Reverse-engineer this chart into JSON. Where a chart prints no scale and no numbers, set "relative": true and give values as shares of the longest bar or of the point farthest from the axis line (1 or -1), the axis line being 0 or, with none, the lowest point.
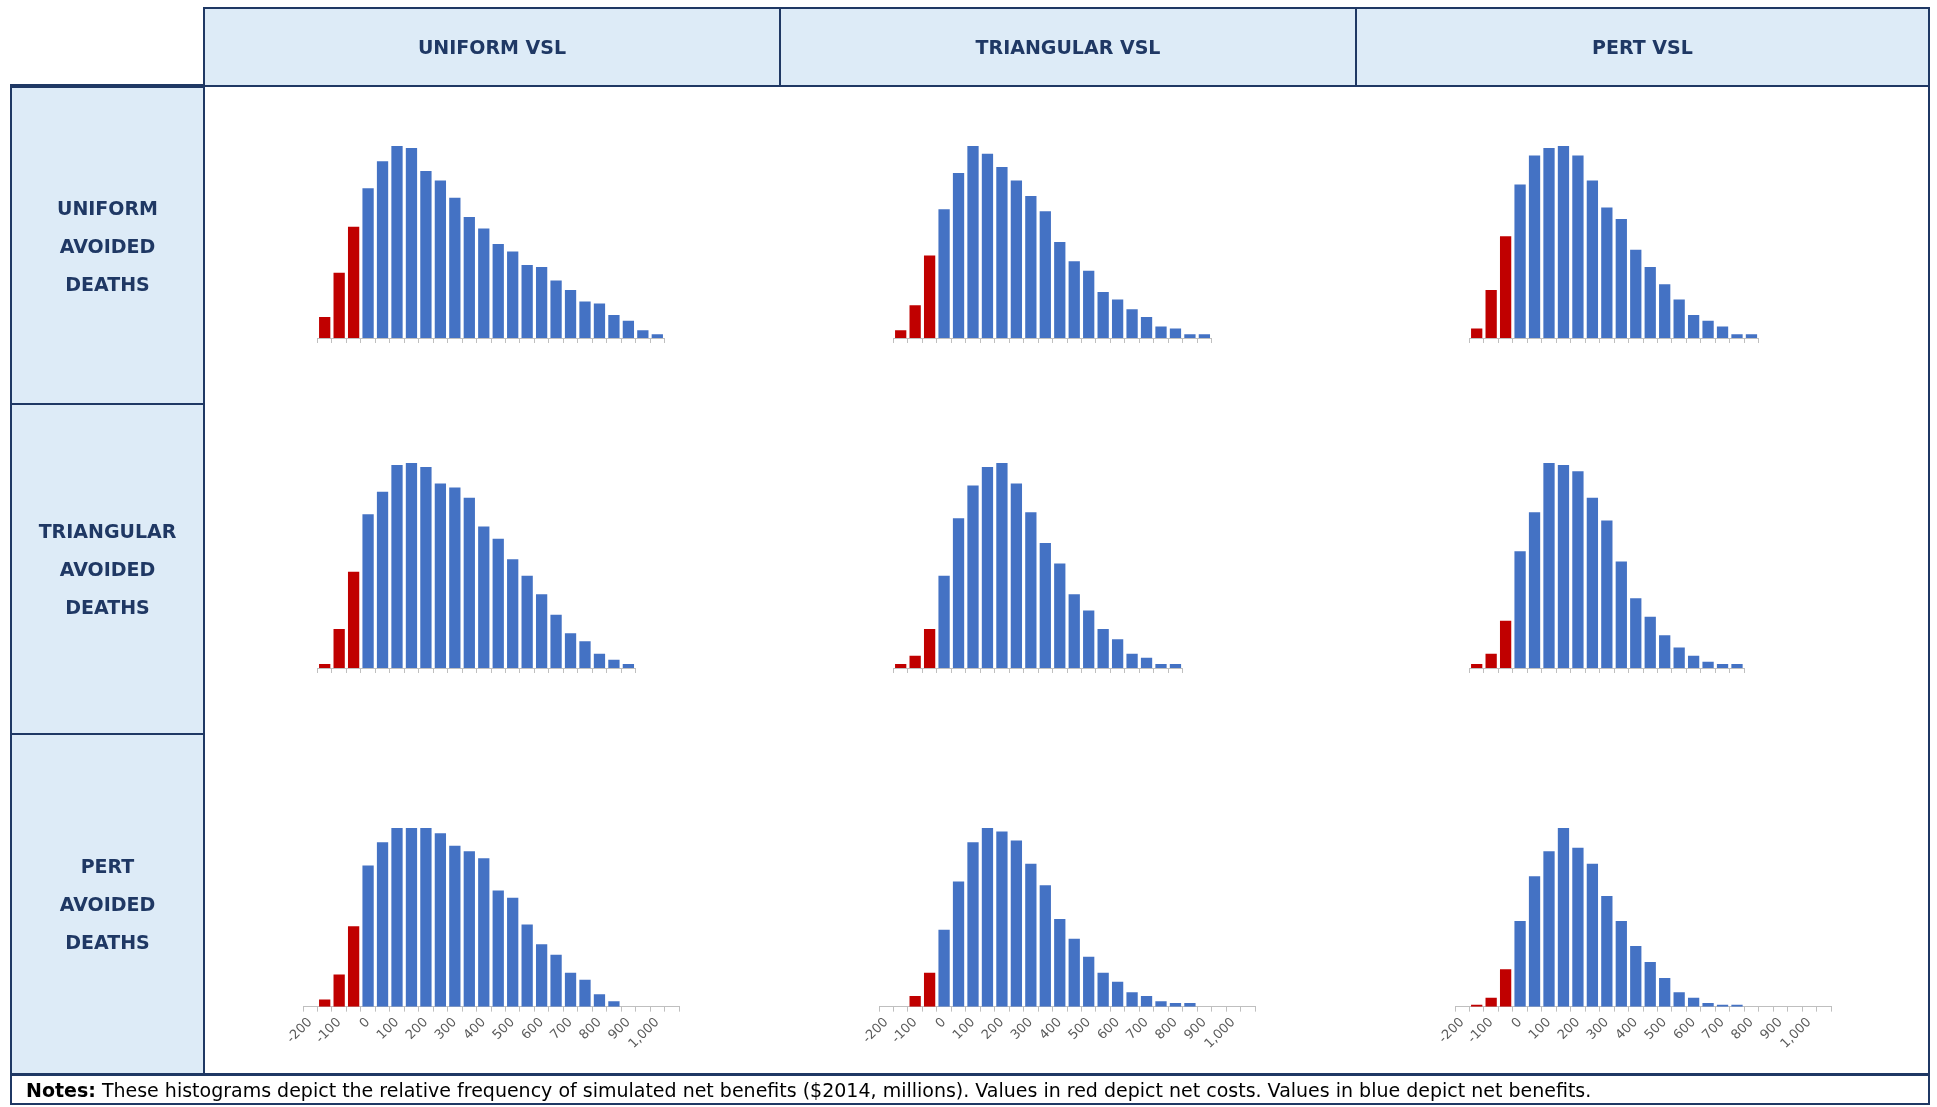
{
  "chart_data": [
    {
      "type": "bar",
      "title": "UNIFORM VSL",
      "ylabel": "UNIFORM AVOIDED DEATHS",
      "relative": true,
      "tick_labels": false,
      "annotations": [
        "Notes: These histograms depict the relative frequency of simulated net benefits ($2014, millions). Values in red depict net costs. Values in blue depict net benefits."
      ],
      "categories": [
        null,
        null,
        null,
        null,
        null,
        null,
        null,
        null,
        null,
        null,
        null,
        null,
        null,
        null,
        null,
        null,
        null,
        null,
        null,
        null,
        null,
        null,
        null,
        null
      ],
      "values": [
        0.11,
        0.34,
        0.58,
        0.78,
        0.92,
        1,
        0.99,
        0.87,
        0.82,
        0.73,
        0.63,
        0.57,
        0.49,
        0.45,
        0.38,
        0.37,
        0.3,
        0.25,
        0.19,
        0.18,
        0.12,
        0.09,
        0.04,
        0.02
      ],
      "colors": [
        "#c00000",
        "#c00000",
        "#c00000",
        "#4472c4",
        "#4472c4",
        "#4472c4",
        "#4472c4",
        "#4472c4",
        "#4472c4",
        "#4472c4",
        "#4472c4",
        "#4472c4",
        "#4472c4",
        "#4472c4",
        "#4472c4",
        "#4472c4",
        "#4472c4",
        "#4472c4",
        "#4472c4",
        "#4472c4",
        "#4472c4",
        "#4472c4",
        "#4472c4",
        "#4472c4"
      ]
    },
    {
      "type": "bar",
      "title": "TRIANGULAR VSL",
      "relative": true,
      "tick_labels": false,
      "categories": [
        null,
        null,
        null,
        null,
        null,
        null,
        null,
        null,
        null,
        null,
        null,
        null,
        null,
        null,
        null,
        null,
        null,
        null,
        null,
        null,
        null,
        null
      ],
      "values": [
        0.04,
        0.17,
        0.43,
        0.67,
        0.86,
        1,
        0.96,
        0.89,
        0.82,
        0.74,
        0.66,
        0.5,
        0.4,
        0.35,
        0.24,
        0.2,
        0.15,
        0.11,
        0.06,
        0.05,
        0.02,
        0.02
      ],
      "colors": [
        "#c00000",
        "#c00000",
        "#c00000",
        "#4472c4",
        "#4472c4",
        "#4472c4",
        "#4472c4",
        "#4472c4",
        "#4472c4",
        "#4472c4",
        "#4472c4",
        "#4472c4",
        "#4472c4",
        "#4472c4",
        "#4472c4",
        "#4472c4",
        "#4472c4",
        "#4472c4",
        "#4472c4",
        "#4472c4",
        "#4472c4",
        "#4472c4"
      ]
    },
    {
      "type": "bar",
      "title": "PERT VSL",
      "relative": true,
      "tick_labels": false,
      "categories": [
        null,
        null,
        null,
        null,
        null,
        null,
        null,
        null,
        null,
        null,
        null,
        null,
        null,
        null,
        null,
        null,
        null,
        null,
        null,
        null
      ],
      "values": [
        0.05,
        0.25,
        0.53,
        0.8,
        0.95,
        0.99,
        1,
        0.95,
        0.82,
        0.68,
        0.62,
        0.46,
        0.37,
        0.28,
        0.2,
        0.12,
        0.09,
        0.06,
        0.02,
        0.02
      ],
      "colors": [
        "#c00000",
        "#c00000",
        "#c00000",
        "#4472c4",
        "#4472c4",
        "#4472c4",
        "#4472c4",
        "#4472c4",
        "#4472c4",
        "#4472c4",
        "#4472c4",
        "#4472c4",
        "#4472c4",
        "#4472c4",
        "#4472c4",
        "#4472c4",
        "#4472c4",
        "#4472c4",
        "#4472c4",
        "#4472c4"
      ]
    },
    {
      "type": "bar",
      "ylabel": "TRIANGULAR AVOIDED DEATHS",
      "relative": true,
      "tick_labels": false,
      "categories": [
        null,
        null,
        null,
        null,
        null,
        null,
        null,
        null,
        null,
        null,
        null,
        null,
        null,
        null,
        null,
        null,
        null,
        null,
        null,
        null,
        null,
        null
      ],
      "values": [
        0.02,
        0.19,
        0.47,
        0.75,
        0.86,
        0.99,
        1,
        0.98,
        0.9,
        0.88,
        0.83,
        0.69,
        0.63,
        0.53,
        0.45,
        0.36,
        0.26,
        0.17,
        0.13,
        0.07,
        0.04,
        0.02
      ],
      "colors": [
        "#c00000",
        "#c00000",
        "#c00000",
        "#4472c4",
        "#4472c4",
        "#4472c4",
        "#4472c4",
        "#4472c4",
        "#4472c4",
        "#4472c4",
        "#4472c4",
        "#4472c4",
        "#4472c4",
        "#4472c4",
        "#4472c4",
        "#4472c4",
        "#4472c4",
        "#4472c4",
        "#4472c4",
        "#4472c4",
        "#4472c4",
        "#4472c4"
      ]
    },
    {
      "type": "bar",
      "relative": true,
      "tick_labels": false,
      "categories": [
        null,
        null,
        null,
        null,
        null,
        null,
        null,
        null,
        null,
        null,
        null,
        null,
        null,
        null,
        null,
        null,
        null,
        null,
        null,
        null
      ],
      "values": [
        0.02,
        0.06,
        0.19,
        0.45,
        0.73,
        0.89,
        0.98,
        1,
        0.9,
        0.76,
        0.61,
        0.51,
        0.36,
        0.28,
        0.19,
        0.14,
        0.07,
        0.05,
        0.02,
        0.02
      ],
      "colors": [
        "#c00000",
        "#c00000",
        "#c00000",
        "#4472c4",
        "#4472c4",
        "#4472c4",
        "#4472c4",
        "#4472c4",
        "#4472c4",
        "#4472c4",
        "#4472c4",
        "#4472c4",
        "#4472c4",
        "#4472c4",
        "#4472c4",
        "#4472c4",
        "#4472c4",
        "#4472c4",
        "#4472c4",
        "#4472c4"
      ]
    },
    {
      "type": "bar",
      "relative": true,
      "tick_labels": false,
      "categories": [
        null,
        null,
        null,
        null,
        null,
        null,
        null,
        null,
        null,
        null,
        null,
        null,
        null,
        null,
        null,
        null,
        null,
        null,
        null
      ],
      "values": [
        0.02,
        0.07,
        0.23,
        0.57,
        0.76,
        1,
        0.99,
        0.96,
        0.83,
        0.72,
        0.52,
        0.34,
        0.25,
        0.16,
        0.1,
        0.06,
        0.03,
        0.02,
        0.02
      ],
      "colors": [
        "#c00000",
        "#c00000",
        "#c00000",
        "#4472c4",
        "#4472c4",
        "#4472c4",
        "#4472c4",
        "#4472c4",
        "#4472c4",
        "#4472c4",
        "#4472c4",
        "#4472c4",
        "#4472c4",
        "#4472c4",
        "#4472c4",
        "#4472c4",
        "#4472c4",
        "#4472c4",
        "#4472c4"
      ]
    },
    {
      "type": "bar",
      "ylabel": "PERT AVOIDED DEATHS",
      "relative": true,
      "categories": [
        "-200",
        null,
        "-100",
        null,
        "0",
        null,
        "100",
        null,
        "200",
        null,
        "300",
        null,
        "400",
        null,
        "500",
        null,
        "600",
        null,
        "700",
        null,
        "800",
        null,
        "900",
        null,
        "1,000",
        null
      ],
      "values": [
        0,
        0.04,
        0.18,
        0.45,
        0.79,
        0.92,
        1,
        1,
        1,
        0.97,
        0.9,
        0.87,
        0.83,
        0.65,
        0.61,
        0.46,
        0.35,
        0.29,
        0.19,
        0.15,
        0.07,
        0.03,
        0,
        0,
        0,
        0
      ],
      "colors": [
        "#c00000",
        "#c00000",
        "#c00000",
        "#c00000",
        "#4472c4",
        "#4472c4",
        "#4472c4",
        "#4472c4",
        "#4472c4",
        "#4472c4",
        "#4472c4",
        "#4472c4",
        "#4472c4",
        "#4472c4",
        "#4472c4",
        "#4472c4",
        "#4472c4",
        "#4472c4",
        "#4472c4",
        "#4472c4",
        "#4472c4",
        "#4472c4",
        "#4472c4",
        "#4472c4",
        "#4472c4",
        "#4472c4"
      ]
    },
    {
      "type": "bar",
      "relative": true,
      "categories": [
        "-200",
        null,
        "-100",
        null,
        "0",
        null,
        "100",
        null,
        "200",
        null,
        "300",
        null,
        "400",
        null,
        "500",
        null,
        "600",
        null,
        "700",
        null,
        "800",
        null,
        "900",
        null,
        "1,000",
        null
      ],
      "values": [
        0,
        0,
        0.06,
        0.19,
        0.43,
        0.7,
        0.92,
        1,
        0.98,
        0.93,
        0.8,
        0.68,
        0.49,
        0.38,
        0.28,
        0.19,
        0.14,
        0.08,
        0.06,
        0.03,
        0.02,
        0.02,
        0,
        0,
        0,
        0
      ],
      "colors": [
        "#c00000",
        "#c00000",
        "#c00000",
        "#c00000",
        "#4472c4",
        "#4472c4",
        "#4472c4",
        "#4472c4",
        "#4472c4",
        "#4472c4",
        "#4472c4",
        "#4472c4",
        "#4472c4",
        "#4472c4",
        "#4472c4",
        "#4472c4",
        "#4472c4",
        "#4472c4",
        "#4472c4",
        "#4472c4",
        "#4472c4",
        "#4472c4",
        "#4472c4",
        "#4472c4",
        "#4472c4",
        "#4472c4"
      ]
    },
    {
      "type": "bar",
      "relative": true,
      "categories": [
        "-200",
        null,
        "-100",
        null,
        "0",
        null,
        "100",
        null,
        "200",
        null,
        "300",
        null,
        "400",
        null,
        "500",
        null,
        "600",
        null,
        "700",
        null,
        "800",
        null,
        "900",
        null,
        "1,000",
        null
      ],
      "values": [
        0,
        0.01,
        0.05,
        0.21,
        0.48,
        0.73,
        0.87,
        1,
        0.89,
        0.8,
        0.62,
        0.48,
        0.34,
        0.25,
        0.16,
        0.08,
        0.05,
        0.02,
        0.01,
        0.01,
        0,
        0,
        0,
        0,
        0,
        0
      ],
      "colors": [
        "#c00000",
        "#c00000",
        "#c00000",
        "#c00000",
        "#4472c4",
        "#4472c4",
        "#4472c4",
        "#4472c4",
        "#4472c4",
        "#4472c4",
        "#4472c4",
        "#4472c4",
        "#4472c4",
        "#4472c4",
        "#4472c4",
        "#4472c4",
        "#4472c4",
        "#4472c4",
        "#4472c4",
        "#4472c4",
        "#4472c4",
        "#4472c4",
        "#4472c4",
        "#4472c4",
        "#4472c4",
        "#4472c4"
      ]
    }
  ]
}
